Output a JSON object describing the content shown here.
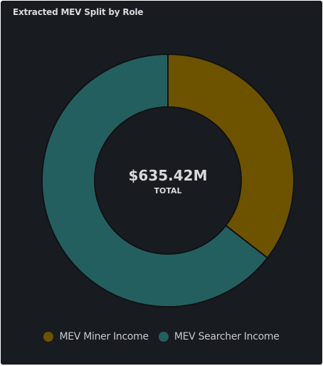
{
  "panel": {
    "title": "Extracted MEV Split by Role"
  },
  "colors": {
    "background": "#181b1f",
    "miner": "#6d5300",
    "searcher": "#245f60",
    "text": "#d8d9da"
  },
  "chart_data": {
    "type": "pie",
    "variant": "donut",
    "title": "Extracted MEV Split by Role",
    "center_value": "$635.42M",
    "center_label": "TOTAL",
    "legend_placement": "bottom",
    "slices": [
      {
        "name": "MEV Miner Income",
        "fraction": 0.355,
        "color": "#6d5300"
      },
      {
        "name": "MEV Searcher Income",
        "fraction": 0.645,
        "color": "#245f60"
      }
    ]
  }
}
